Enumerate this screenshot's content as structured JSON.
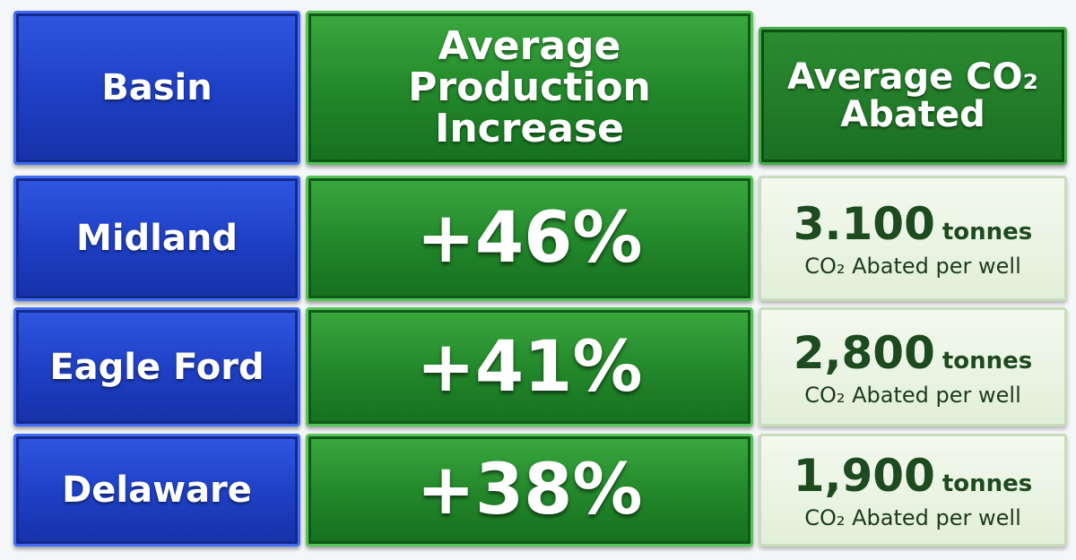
{
  "table": {
    "headers": [
      "Basin",
      "Average Production Increase",
      "Average CO₂ Abated"
    ],
    "rows": [
      [
        "Midland",
        "+46%",
        "3.100",
        "tonnes",
        "CO₂ Abated per well"
      ],
      [
        "Eagle Ford",
        "+41%",
        "2,800",
        "tonnes",
        "CO₂ Abated per well"
      ],
      [
        "Delaware",
        "+38%",
        "1,900",
        "tonnes",
        "CO₂ Abated per well"
      ]
    ]
  }
}
